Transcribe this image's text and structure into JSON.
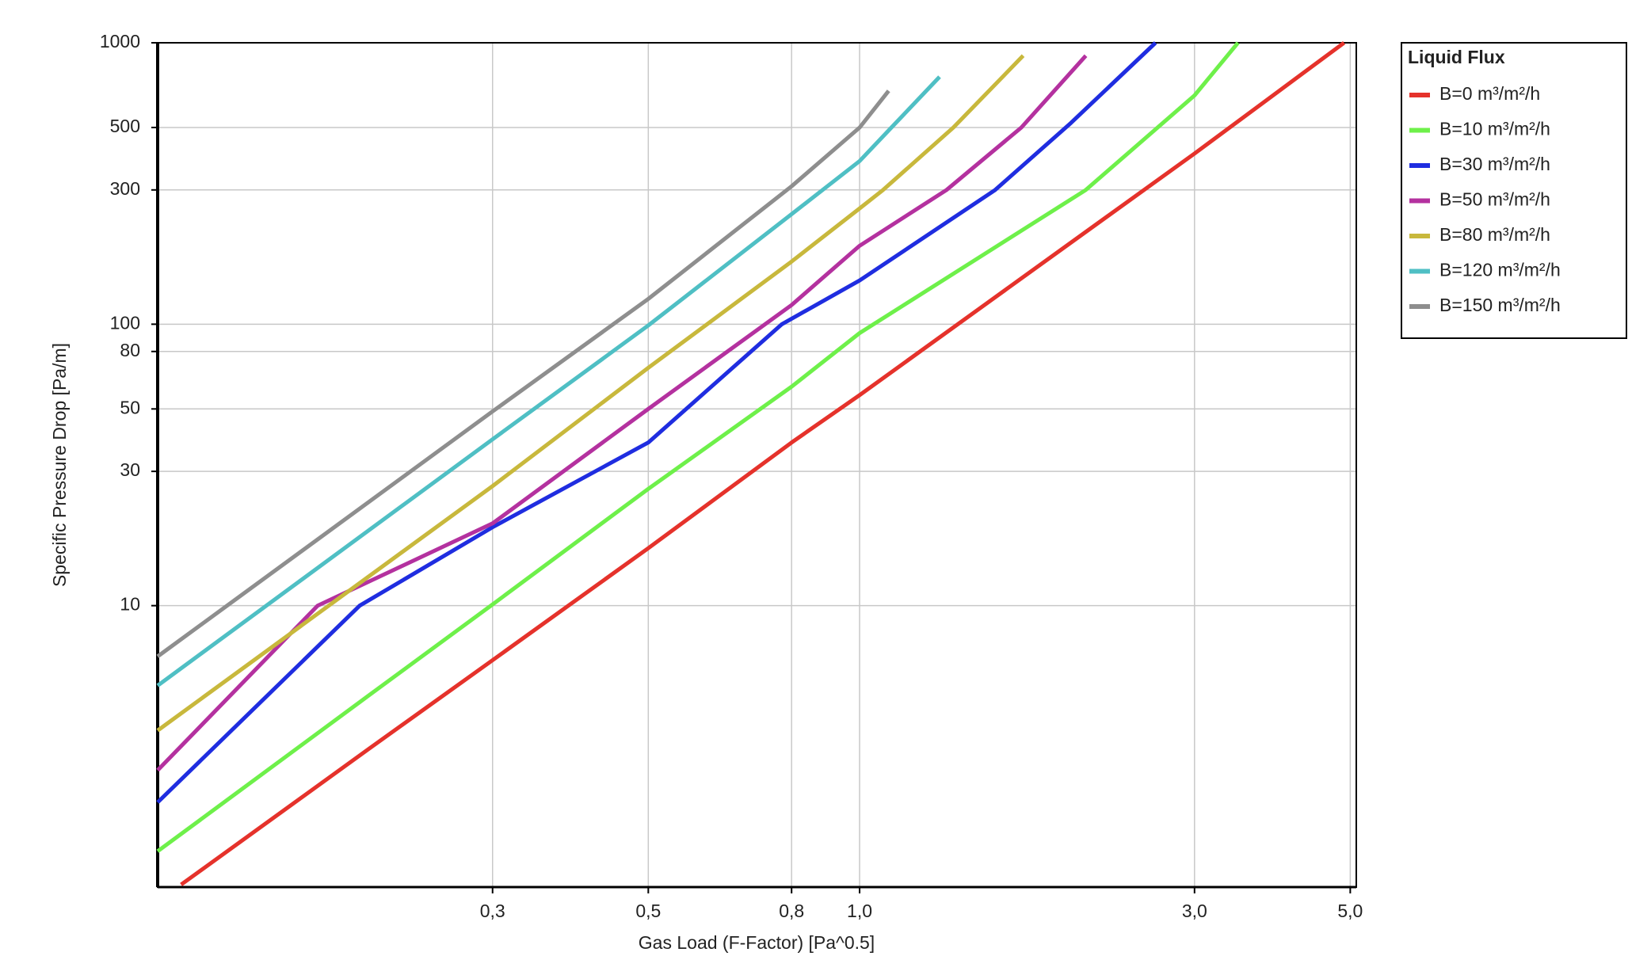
{
  "chart_data": {
    "type": "line",
    "x_label": "Gas Load (F-Factor) [Pa^0.5]",
    "y_label": "Specific Pressure Drop [Pa/m]",
    "log_x": true,
    "log_y": true,
    "grid": true,
    "xlim": [
      0.1,
      5.1
    ],
    "ylim": [
      1,
      1000
    ],
    "xticks": [
      {
        "value": 0.3,
        "label": "0,3"
      },
      {
        "value": 0.5,
        "label": "0,5"
      },
      {
        "value": 0.8,
        "label": "0,8"
      },
      {
        "value": 1.0,
        "label": "1,0"
      },
      {
        "value": 3.0,
        "label": "3,0"
      },
      {
        "value": 5.0,
        "label": "5,0"
      }
    ],
    "yticks": [
      10,
      30,
      50,
      80,
      100,
      300,
      500,
      1000
    ],
    "legend_title": "Liquid Flux",
    "legend_position": "outside-right",
    "series": [
      {
        "name": "B=0 m³/m²/h",
        "color": "#e5322b",
        "x": [
          0.108,
          0.2,
          0.3,
          0.5,
          0.8,
          1.0,
          2.0,
          3.0,
          4.9
        ],
        "values": [
          1.02,
          3.1,
          6.4,
          16,
          38,
          56,
          195,
          404,
          1000
        ]
      },
      {
        "name": "B=10 m³/m²/h",
        "color": "#6ef04a",
        "x": [
          0.1,
          0.2,
          0.3,
          0.5,
          0.8,
          1.0,
          2.1,
          3.0,
          3.46
        ],
        "values": [
          1.34,
          4.8,
          10.1,
          26,
          60,
          93,
          300,
          650,
          1000
        ]
      },
      {
        "name": "B=30 m³/m²/h",
        "color": "#1f2de0",
        "x": [
          0.1,
          0.194,
          0.3,
          0.5,
          0.775,
          1.0,
          1.56,
          2.0,
          2.64
        ],
        "values": [
          2.0,
          10,
          19,
          38,
          100,
          143,
          300,
          519,
          1000
        ]
      },
      {
        "name": "B=50 m³/m²/h",
        "color": "#b4319f",
        "x": [
          0.1,
          0.169,
          0.3,
          0.5,
          0.8,
          1.0,
          1.33,
          1.7,
          2.1
        ],
        "values": [
          2.6,
          10,
          19.6,
          50,
          117,
          190,
          300,
          500,
          900
        ]
      },
      {
        "name": "B=80 m³/m²/h",
        "color": "#c8b83c",
        "x": [
          0.1,
          0.3,
          0.5,
          0.8,
          1.0,
          1.08,
          1.36,
          1.71
        ],
        "values": [
          3.6,
          26.6,
          70,
          167,
          258,
          300,
          500,
          900
        ]
      },
      {
        "name": "B=120 m³/m²/h",
        "color": "#4fbfc4",
        "x": [
          0.1,
          0.3,
          0.5,
          0.8,
          1.0,
          1.11,
          1.3
        ],
        "values": [
          5.2,
          39,
          99,
          246,
          380,
          500,
          757
        ]
      },
      {
        "name": "B=150 m³/m²/h",
        "color": "#8e8e8e",
        "x": [
          0.1,
          0.3,
          0.5,
          0.8,
          1.0,
          1.1
        ],
        "values": [
          6.6,
          49,
          123,
          309,
          500,
          675
        ]
      }
    ]
  }
}
